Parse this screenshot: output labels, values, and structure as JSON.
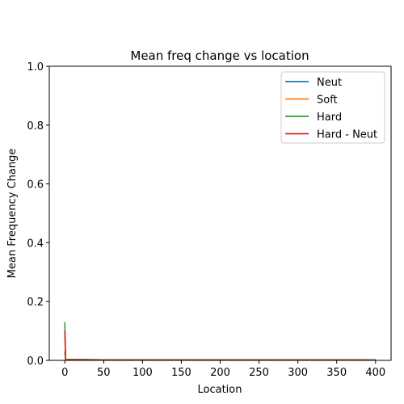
{
  "chart_data": {
    "type": "line",
    "title": "Mean freq change vs location",
    "xlabel": "Location",
    "ylabel": "Mean Frequency Change",
    "xlim": [
      -20,
      420
    ],
    "ylim": [
      0,
      1.0
    ],
    "xticks": [
      0,
      50,
      100,
      150,
      200,
      250,
      300,
      350,
      400
    ],
    "xtick_labels": [
      "0",
      "50",
      "100",
      "150",
      "200",
      "250",
      "300",
      "350",
      "400"
    ],
    "yticks": [
      0,
      0.2,
      0.4,
      0.6,
      0.8,
      1.0
    ],
    "ytick_labels": [
      "0.0",
      "0.2",
      "0.4",
      "0.6",
      "0.8",
      "1.0"
    ],
    "grid": false,
    "legend_position": "top-right",
    "series": [
      {
        "name": "Neut",
        "color": "#1f77b4",
        "x": [
          0,
          1,
          2,
          5,
          10,
          20,
          50,
          100,
          200,
          300,
          400
        ],
        "y": [
          0.03,
          0.003,
          0.002,
          0.002,
          0.002,
          0.002,
          0.002,
          0.002,
          0.002,
          0.002,
          0.002
        ]
      },
      {
        "name": "Soft",
        "color": "#ff7f0e",
        "x": [
          0,
          1,
          2,
          5,
          10,
          20,
          50,
          100,
          200,
          300,
          400
        ],
        "y": [
          0.1,
          0.004,
          0.003,
          0.003,
          0.003,
          0.003,
          0.002,
          0.002,
          0.002,
          0.002,
          0.002
        ]
      },
      {
        "name": "Hard",
        "color": "#2ca02c",
        "x": [
          0,
          1,
          2,
          5,
          10,
          20,
          50,
          100,
          200,
          300,
          400
        ],
        "y": [
          0.13,
          0.005,
          0.003,
          0.003,
          0.003,
          0.003,
          0.002,
          0.002,
          0.002,
          0.002,
          0.002
        ]
      },
      {
        "name": "Hard - Neut",
        "color": "#d62728",
        "x": [
          0,
          1,
          2,
          5,
          10,
          20,
          50,
          100,
          200,
          300,
          400
        ],
        "y": [
          0.1,
          0.002,
          0.001,
          0.002,
          0.002,
          0.002,
          0.001,
          0.001,
          0.001,
          0.001,
          0.001
        ]
      }
    ]
  }
}
